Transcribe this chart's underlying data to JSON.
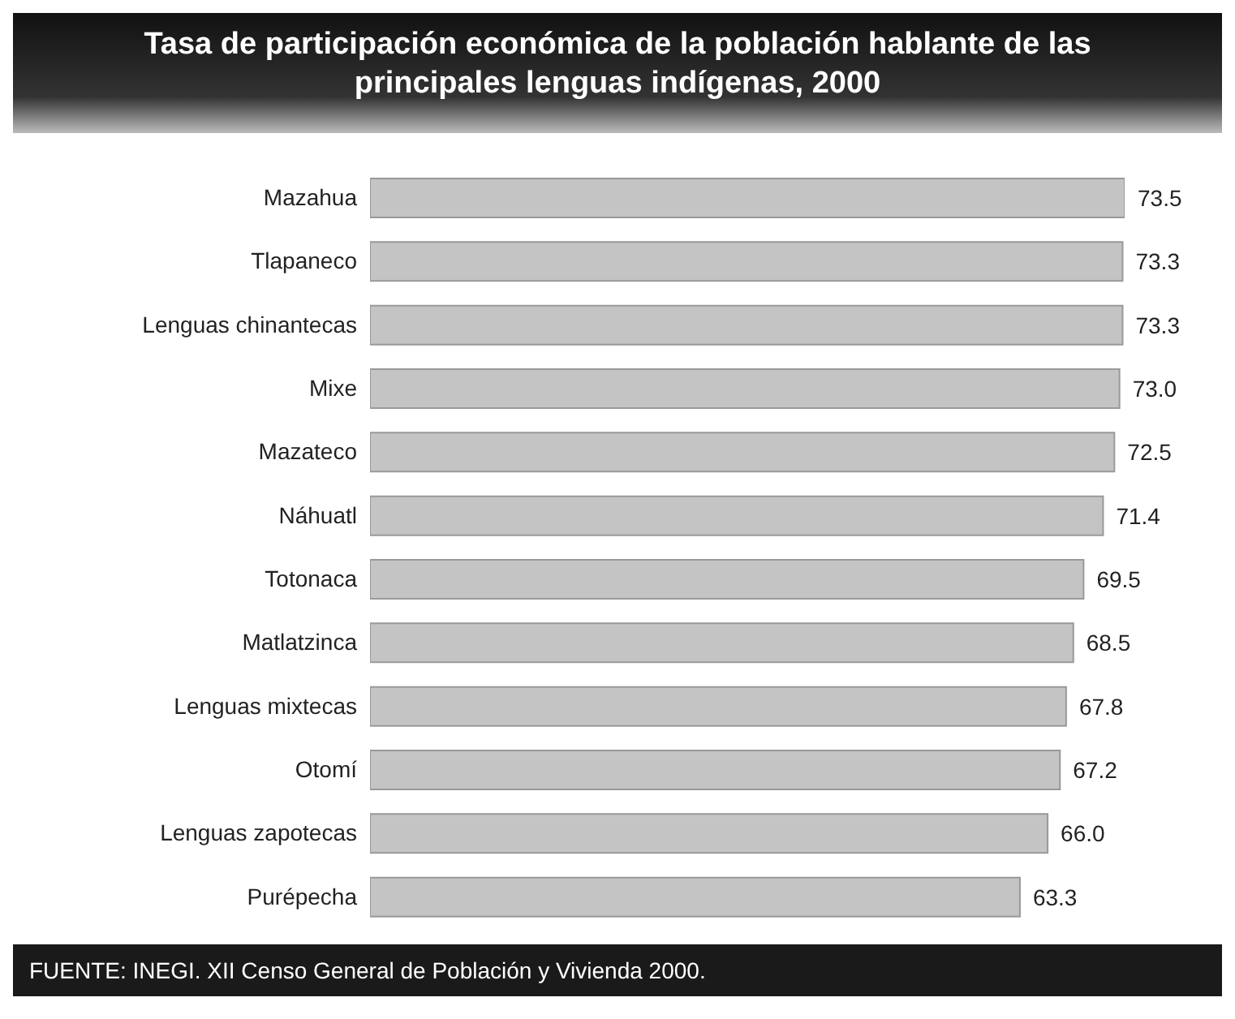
{
  "chart_data": {
    "type": "bar",
    "orientation": "horizontal",
    "title": "Tasa de participación económica de la población hablante de las principales lenguas indígenas, 2000",
    "categories": [
      "Mazahua",
      "Tlapaneco",
      "Lenguas chinantecas",
      "Mixe",
      "Mazateco",
      "Náhuatl",
      "Totonaca",
      "Matlatzinca",
      "Lenguas mixtecas",
      "Otomí",
      "Lenguas zapotecas",
      "Purépecha"
    ],
    "values": [
      73.5,
      73.3,
      73.3,
      73.0,
      72.5,
      71.4,
      69.5,
      68.5,
      67.8,
      67.2,
      66.0,
      63.3
    ],
    "value_labels": [
      "73.5",
      "73.3",
      "73.3",
      "73.0",
      "72.5",
      "71.4",
      "69.5",
      "68.5",
      "67.8",
      "67.2",
      "66.0",
      "63.3"
    ],
    "color": "#c4c4c4",
    "tick_labels": "y",
    "annotations": [
      "FUENTE: INEGI. XII Censo General de Población y Vivienda 2000."
    ]
  }
}
